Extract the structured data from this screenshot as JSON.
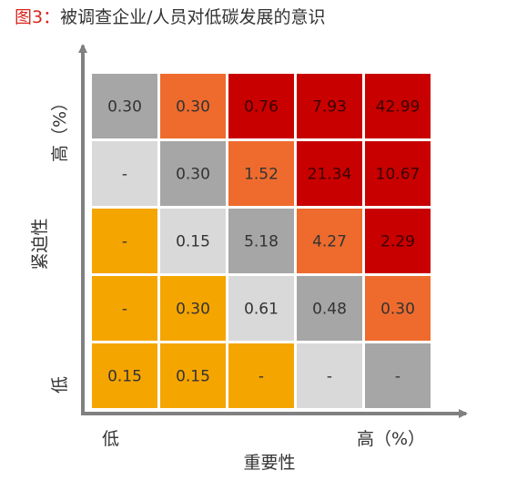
{
  "header": {
    "figure_label": "图3：",
    "title": "被调查企业/人员对低碳发展的意识"
  },
  "colors": {
    "light_gray": "#d9d9d9",
    "gray": "#a6a6a6",
    "amber": "#f5a500",
    "orange": "#ee6b2d",
    "red": "#c80000",
    "axis": "#808080",
    "text_dark": "#333333"
  },
  "chart_data": {
    "type": "heatmap",
    "title": "被调查企业/人员对低碳发展的意识",
    "xlabel": "重要性",
    "ylabel": "紧迫性",
    "x_axis_low": "低",
    "x_axis_high": "高（%）",
    "y_axis_low": "低",
    "y_axis_high": "高（%）",
    "unit": "%",
    "rows_top_to_bottom": [
      [
        "0.30",
        "0.30",
        "0.76",
        "7.93",
        "42.99"
      ],
      [
        "-",
        "0.30",
        "1.52",
        "21.34",
        "10.67"
      ],
      [
        "-",
        "0.15",
        "5.18",
        "4.27",
        "2.29"
      ],
      [
        "-",
        "0.30",
        "0.61",
        "0.48",
        "0.30"
      ],
      [
        "0.15",
        "0.15",
        "-",
        "-",
        "-"
      ]
    ],
    "cell_colors_top_to_bottom": [
      [
        "gray",
        "orange",
        "red",
        "red",
        "red"
      ],
      [
        "light_gray",
        "gray",
        "orange",
        "red",
        "red"
      ],
      [
        "amber",
        "light_gray",
        "gray",
        "orange",
        "red"
      ],
      [
        "amber",
        "amber",
        "light_gray",
        "gray",
        "orange"
      ],
      [
        "amber",
        "amber",
        "amber",
        "light_gray",
        "gray"
      ]
    ]
  }
}
